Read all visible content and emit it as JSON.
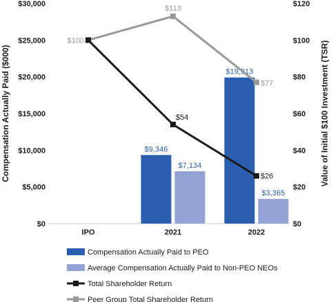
{
  "chart_data": {
    "type": "bar",
    "categories": [
      "IPO",
      "2021",
      "2022"
    ],
    "y_left": {
      "label": "Compensation Actually Paid ($000)",
      "ylim": [
        0,
        30000
      ],
      "ticks": [
        0,
        5000,
        10000,
        15000,
        20000,
        25000,
        30000
      ],
      "tick_labels": [
        "$0",
        "$5,000",
        "$10,000",
        "$15,000",
        "$20,000",
        "$25,000",
        "$30,000"
      ]
    },
    "y_right": {
      "label": "Value of Initial $100 Investment (TSR)",
      "ylim": [
        0,
        120
      ],
      "ticks": [
        0,
        20,
        40,
        60,
        80,
        100,
        120
      ],
      "tick_labels": [
        "$0",
        "$20",
        "$40",
        "$60",
        "$80",
        "$100",
        "$120"
      ]
    },
    "bar_series": [
      {
        "name": "Compensation Actually Paid to PEO",
        "color": "#2a5fb0",
        "label_color": "#2a5fb0",
        "values": [
          null,
          9346,
          19913
        ],
        "labels": [
          "",
          "$9,346",
          "$19,913"
        ]
      },
      {
        "name": "Average Compensation Actually Paid to Non-PEO NEOs",
        "color": "#93a3d6",
        "label_color": "#2a5fb0",
        "values": [
          null,
          7134,
          3365
        ],
        "labels": [
          "",
          "$7,134",
          "$3,365"
        ]
      }
    ],
    "line_series": [
      {
        "name": "Total Shareholder Return",
        "color": "#1a1a1a",
        "label_color": "#1a1a1a",
        "values": [
          100,
          54,
          26
        ],
        "labels": [
          "",
          "$54",
          "$26"
        ]
      },
      {
        "name": "Peer Group Total Shareholder Return",
        "color": "#999999",
        "label_color": "#999999",
        "values": [
          100,
          113,
          77
        ],
        "labels": [
          "$100",
          "$113",
          "$77"
        ]
      }
    ],
    "legend_position": "bottom",
    "grid": false
  }
}
